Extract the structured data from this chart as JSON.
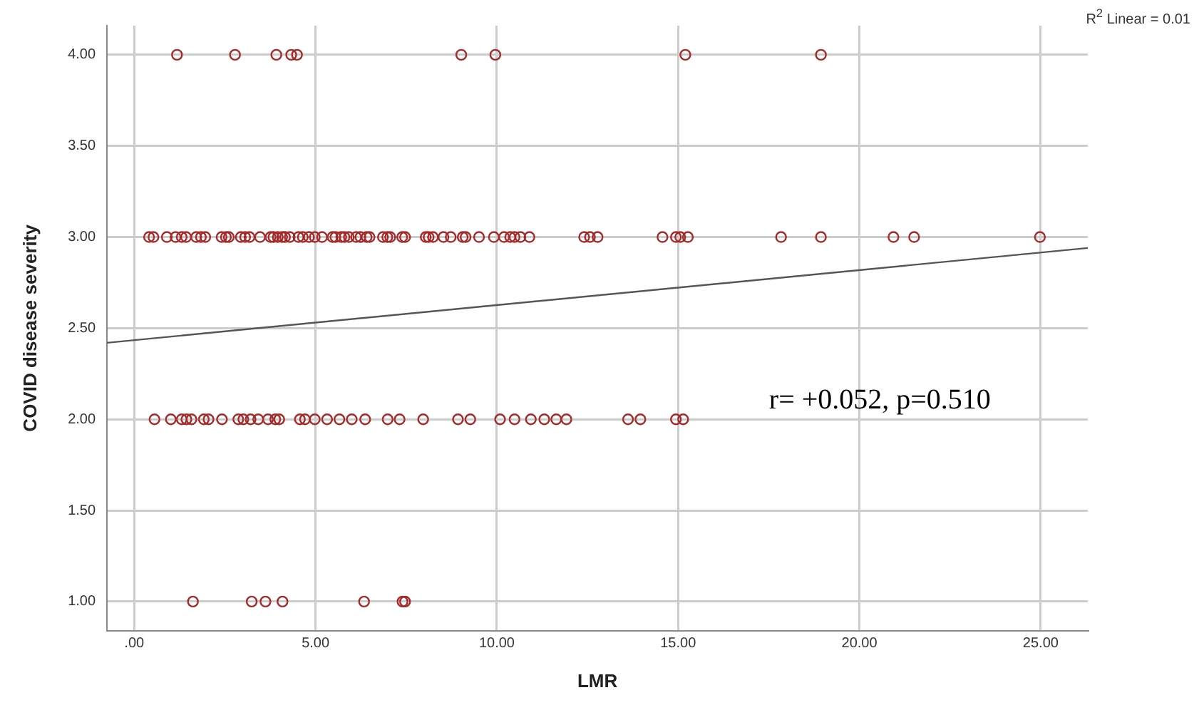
{
  "chart_data": {
    "type": "scatter",
    "xlabel": "LMR",
    "ylabel": "COVID disease severity",
    "xlim": [
      -0.75,
      26.3
    ],
    "ylim": [
      0.84,
      4.16
    ],
    "xticks": [
      {
        "value": 0,
        "label": ".00"
      },
      {
        "value": 5,
        "label": "5.00"
      },
      {
        "value": 10,
        "label": "10.00"
      },
      {
        "value": 15,
        "label": "15.00"
      },
      {
        "value": 20,
        "label": "20.00"
      },
      {
        "value": 25,
        "label": "25.00"
      }
    ],
    "yticks": [
      {
        "value": 1,
        "label": "1.00"
      },
      {
        "value": 1.5,
        "label": "1.50"
      },
      {
        "value": 2,
        "label": "2.00"
      },
      {
        "value": 2.5,
        "label": "2.50"
      },
      {
        "value": 3,
        "label": "3.00"
      },
      {
        "value": 3.5,
        "label": "3.50"
      },
      {
        "value": 4,
        "label": "4.00"
      }
    ],
    "grid": true,
    "legend": false,
    "annotations": [
      "R$^{2}$ Linear = 0.01",
      "r= +0.052, p=0.510"
    ],
    "series": [
      {
        "type": "scatter",
        "marker": "circle",
        "color": "#a52a2a",
        "x": [
          1.18,
          2.78,
          3.92,
          4.33,
          4.49,
          9.02,
          9.96,
          15.2,
          18.94,
          0.41,
          0.53,
          0.9,
          1.14,
          1.31,
          1.43,
          1.71,
          1.84,
          1.96,
          2.41,
          2.53,
          2.61,
          2.94,
          3.06,
          3.18,
          3.47,
          3.76,
          3.84,
          3.96,
          4.08,
          4.16,
          4.29,
          4.53,
          4.65,
          4.82,
          4.98,
          5.18,
          5.47,
          5.55,
          5.71,
          5.8,
          5.92,
          6.12,
          6.24,
          6.41,
          6.49,
          6.86,
          6.98,
          7.06,
          7.39,
          7.47,
          8.04,
          8.12,
          8.24,
          8.53,
          8.73,
          9.06,
          9.14,
          9.51,
          9.92,
          10.2,
          10.37,
          10.49,
          10.65,
          10.9,
          12.41,
          12.57,
          12.78,
          14.57,
          14.94,
          15.06,
          15.27,
          17.84,
          18.94,
          20.94,
          21.51,
          24.98,
          0.56,
          1.01,
          1.31,
          1.44,
          1.58,
          1.92,
          2.05,
          2.42,
          2.87,
          3.01,
          3.21,
          3.42,
          3.69,
          3.89,
          4.0,
          4.57,
          4.71,
          4.98,
          5.32,
          5.66,
          6.0,
          6.37,
          6.99,
          7.32,
          7.97,
          8.93,
          9.27,
          10.09,
          10.49,
          10.94,
          11.31,
          11.64,
          11.92,
          13.62,
          13.96,
          14.94,
          15.14,
          1.62,
          3.24,
          3.62,
          4.09,
          6.34,
          7.4,
          7.47
        ],
        "values": [
          4,
          4,
          4,
          4,
          4,
          4,
          4,
          4,
          4,
          3,
          3,
          3,
          3,
          3,
          3,
          3,
          3,
          3,
          3,
          3,
          3,
          3,
          3,
          3,
          3,
          3,
          3,
          3,
          3,
          3,
          3,
          3,
          3,
          3,
          3,
          3,
          3,
          3,
          3,
          3,
          3,
          3,
          3,
          3,
          3,
          3,
          3,
          3,
          3,
          3,
          3,
          3,
          3,
          3,
          3,
          3,
          3,
          3,
          3,
          3,
          3,
          3,
          3,
          3,
          3,
          3,
          3,
          3,
          3,
          3,
          3,
          3,
          3,
          3,
          3,
          3,
          2,
          2,
          2,
          2,
          2,
          2,
          2,
          2,
          2,
          2,
          2,
          2,
          2,
          2,
          2,
          2,
          2,
          2,
          2,
          2,
          2,
          2,
          2,
          2,
          2,
          2,
          2,
          2,
          2,
          2,
          2,
          2,
          2,
          2,
          2,
          2,
          2,
          1,
          1,
          1,
          1,
          1,
          1,
          1
        ]
      },
      {
        "type": "line",
        "marker": "none",
        "line_style": "solid",
        "color": "#555555",
        "x": [
          -0.75,
          26.3
        ],
        "values": [
          2.42,
          2.94
        ]
      }
    ]
  }
}
